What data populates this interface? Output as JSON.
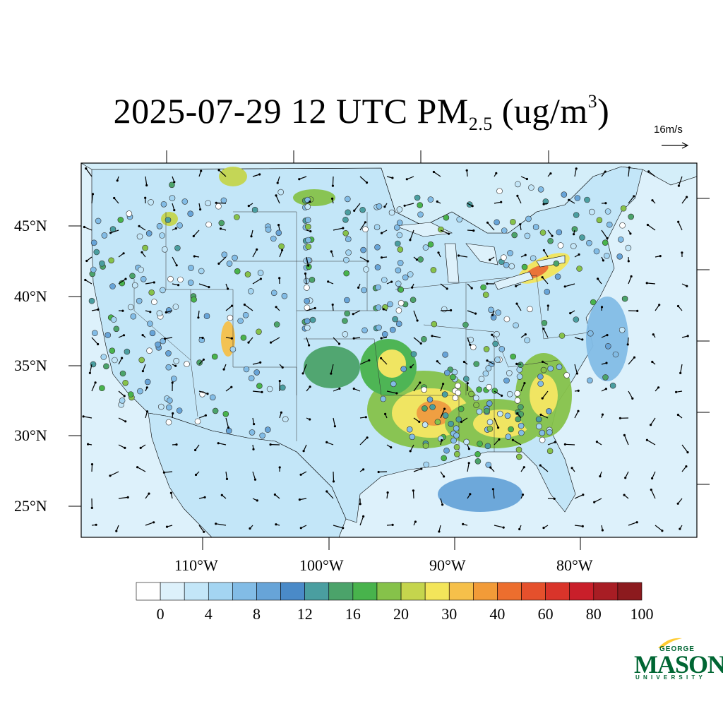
{
  "title": {
    "main": "2025-07-29 12 UTC PM",
    "subscript": "2.5",
    "units_open": " (ug/m",
    "superscript": "3",
    "units_close": ")"
  },
  "vector_reference": {
    "label": "16m/s"
  },
  "map": {
    "latitude_labels": [
      "45°N",
      "40°N",
      "35°N",
      "30°N",
      "25°N"
    ],
    "longitude_labels": [
      "110°W",
      "100°W",
      "90°W",
      "80°W"
    ]
  },
  "colorbar": {
    "labels": [
      "0",
      "4",
      "8",
      "12",
      "16",
      "20",
      "30",
      "40",
      "60",
      "80",
      "100"
    ],
    "colors": [
      "#ffffff",
      "#ddf1fb",
      "#c3e6f8",
      "#a4d5f2",
      "#82bce6",
      "#67a4d8",
      "#4a8ac8",
      "#4a9ea0",
      "#4ba36a",
      "#48b34c",
      "#86c24a",
      "#c5d54d",
      "#f3e55a",
      "#f6c04a",
      "#f29b38",
      "#ec6e2e",
      "#e5502c",
      "#d9342a",
      "#c91f2a",
      "#a81d24",
      "#8c1a1e"
    ]
  },
  "logo": {
    "line1": "GEORGE",
    "line2": "MASON",
    "line3": "UNIVERSITY"
  },
  "colors": {
    "ocean": "#ddf1fb",
    "land_base": "#bfe3f7",
    "logo_green": "#006633",
    "logo_gold": "#ffcc33"
  }
}
